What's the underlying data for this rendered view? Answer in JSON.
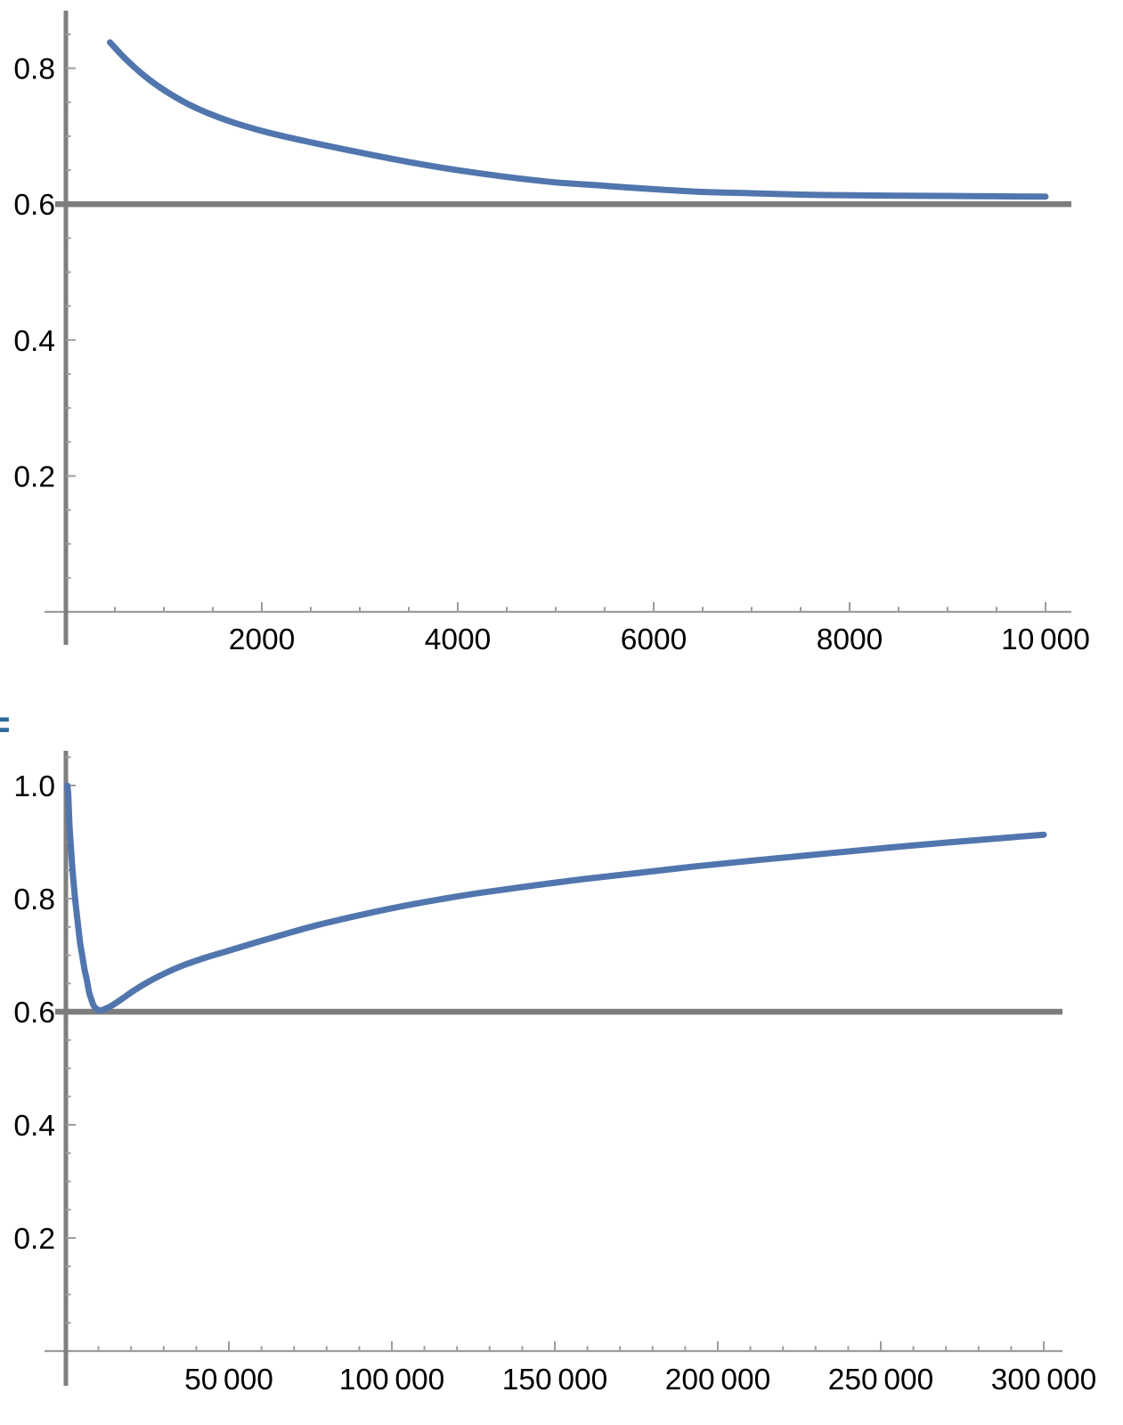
{
  "background": "#ffffff",
  "colors": {
    "curve": "#5176ae",
    "hline": "#7d7d7d",
    "axis": "#7f7f7f",
    "tick": "#9c9c9c",
    "label": "#000000",
    "out_label": "#2d6b9b"
  },
  "out_label": {
    "glyph": "="
  },
  "chart_data": [
    {
      "type": "line",
      "title": "",
      "xlabel": "",
      "ylabel": "",
      "xlim": [
        0,
        10300
      ],
      "ylim": [
        0,
        0.885
      ],
      "grid": false,
      "legend": "none",
      "x_axis": {
        "major_step": 2000,
        "minor_step": 500,
        "tick_labels": [
          {
            "v": 2000,
            "t": "2000"
          },
          {
            "v": 4000,
            "t": "4000"
          },
          {
            "v": 6000,
            "t": "6000"
          },
          {
            "v": 8000,
            "t": "8000"
          },
          {
            "v": 10000,
            "t": "10 000"
          }
        ]
      },
      "y_axis": {
        "major_step": 0.2,
        "minor_step": 0.05,
        "tick_labels": [
          {
            "v": 0.2,
            "t": "0.2"
          },
          {
            "v": 0.4,
            "t": "0.4"
          },
          {
            "v": 0.6,
            "t": "0.6"
          },
          {
            "v": 0.8,
            "t": "0.8"
          }
        ]
      },
      "hline": {
        "value": 0.6
      },
      "series": [
        {
          "name": "decreasing-asymptotic-curve",
          "points": [
            [
              450,
              0.838
            ],
            [
              600,
              0.815
            ],
            [
              800,
              0.789
            ],
            [
              1000,
              0.768
            ],
            [
              1250,
              0.747
            ],
            [
              1500,
              0.731
            ],
            [
              1800,
              0.716
            ],
            [
              2100,
              0.704
            ],
            [
              2500,
              0.691
            ],
            [
              3000,
              0.676
            ],
            [
              3500,
              0.662
            ],
            [
              4000,
              0.65
            ],
            [
              4500,
              0.64
            ],
            [
              5000,
              0.632
            ],
            [
              5500,
              0.627
            ],
            [
              6000,
              0.622
            ],
            [
              6500,
              0.618
            ],
            [
              7000,
              0.616
            ],
            [
              7500,
              0.614
            ],
            [
              8000,
              0.613
            ],
            [
              8500,
              0.6125
            ],
            [
              9000,
              0.612
            ],
            [
              9500,
              0.6115
            ],
            [
              10000,
              0.611
            ]
          ]
        }
      ]
    },
    {
      "type": "line",
      "title": "",
      "xlabel": "",
      "ylabel": "",
      "xlim": [
        0,
        305000
      ],
      "ylim": [
        0,
        1.06
      ],
      "grid": false,
      "legend": "none",
      "x_axis": {
        "major_step": 50000,
        "minor_step": 10000,
        "tick_labels": [
          {
            "v": 50000,
            "t": "50 000"
          },
          {
            "v": 100000,
            "t": "100 000"
          },
          {
            "v": 150000,
            "t": "150 000"
          },
          {
            "v": 200000,
            "t": "200 000"
          },
          {
            "v": 250000,
            "t": "250 000"
          },
          {
            "v": 300000,
            "t": "300 000"
          }
        ]
      },
      "y_axis": {
        "major_step": 0.2,
        "minor_step": 0.05,
        "tick_labels": [
          {
            "v": 0.2,
            "t": "0.2"
          },
          {
            "v": 0.4,
            "t": "0.4"
          },
          {
            "v": 0.6,
            "t": "0.6"
          },
          {
            "v": 0.8,
            "t": "0.8"
          },
          {
            "v": 1.0,
            "t": "1.0"
          }
        ]
      },
      "hline": {
        "value": 0.6
      },
      "series": [
        {
          "name": "dip-then-rise-curve",
          "points": [
            [
              400,
              1.0
            ],
            [
              700,
              0.985
            ],
            [
              1100,
              0.93
            ],
            [
              1600,
              0.885
            ],
            [
              2200,
              0.838
            ],
            [
              3000,
              0.79
            ],
            [
              3700,
              0.755
            ],
            [
              4400,
              0.72
            ],
            [
              5000,
              0.7
            ],
            [
              5700,
              0.675
            ],
            [
              6400,
              0.657
            ],
            [
              7100,
              0.635
            ],
            [
              7800,
              0.622
            ],
            [
              8500,
              0.611
            ],
            [
              9200,
              0.606
            ],
            [
              10000,
              0.603
            ],
            [
              11000,
              0.603
            ],
            [
              12000,
              0.605
            ],
            [
              13500,
              0.609
            ],
            [
              15500,
              0.616
            ],
            [
              18000,
              0.626
            ],
            [
              21000,
              0.638
            ],
            [
              25000,
              0.652
            ],
            [
              30000,
              0.667
            ],
            [
              36000,
              0.682
            ],
            [
              43000,
              0.696
            ],
            [
              50000,
              0.708
            ],
            [
              58000,
              0.722
            ],
            [
              67000,
              0.737
            ],
            [
              77000,
              0.753
            ],
            [
              88000,
              0.768
            ],
            [
              100000,
              0.783
            ],
            [
              113000,
              0.797
            ],
            [
              127000,
              0.81
            ],
            [
              142000,
              0.822
            ],
            [
              158000,
              0.834
            ],
            [
              175000,
              0.845
            ],
            [
              193000,
              0.857
            ],
            [
              212000,
              0.868
            ],
            [
              232000,
              0.879
            ],
            [
              252000,
              0.89
            ],
            [
              272000,
              0.9
            ],
            [
              300000,
              0.913
            ]
          ]
        }
      ]
    }
  ]
}
